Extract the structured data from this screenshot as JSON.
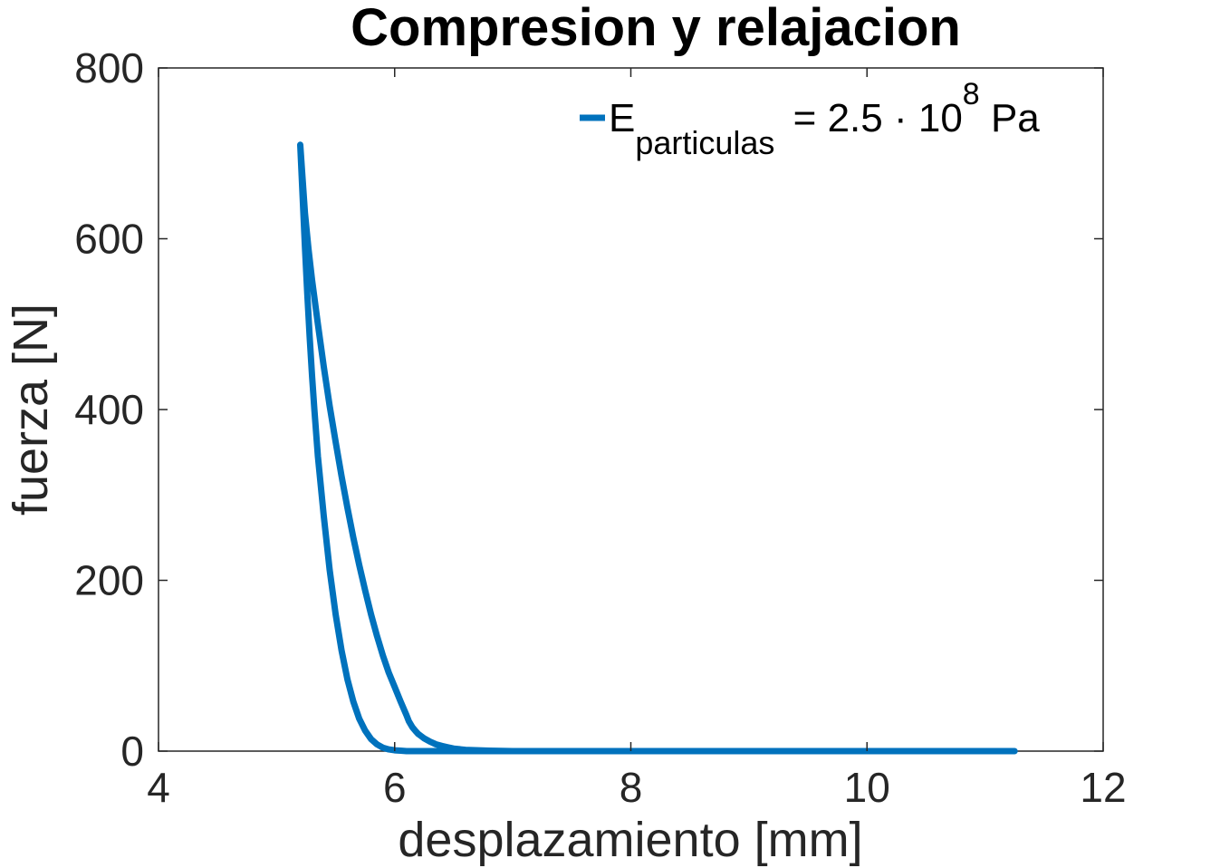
{
  "chart_data": {
    "type": "line",
    "title": "Compresion y relajacion",
    "xlabel": "desplazamiento [mm]",
    "ylabel": "fuerza [N]",
    "xlim": [
      4,
      12
    ],
    "ylim": [
      0,
      800
    ],
    "xticks": [
      4,
      6,
      8,
      10,
      12
    ],
    "yticks": [
      0,
      200,
      400,
      600,
      800
    ],
    "xtick_labels": [
      "4",
      "6",
      "8",
      "10",
      "12"
    ],
    "ytick_labels": [
      "0",
      "200",
      "400",
      "600",
      "800"
    ],
    "grid": false,
    "legend_position": "top-right",
    "legend": {
      "base": "E",
      "subscript": "particulas",
      "middle": " = 2.5 · 10",
      "superscript": "8",
      "unit": " Pa"
    },
    "series": [
      {
        "color": "#0072BD",
        "x": [
          11.25,
          10.5,
          10.0,
          9.5,
          9.0,
          8.5,
          8.0,
          7.5,
          7.0,
          6.8,
          6.6,
          6.5,
          6.45,
          6.4,
          6.35,
          6.3,
          6.25,
          6.22,
          6.2,
          6.18,
          6.15,
          6.12,
          6.1,
          6.05,
          6.0,
          5.95,
          5.9,
          5.85,
          5.8,
          5.75,
          5.7,
          5.65,
          5.6,
          5.55,
          5.5,
          5.45,
          5.4,
          5.35,
          5.3,
          5.27,
          5.24,
          5.22,
          5.2,
          5.22,
          5.24,
          5.26,
          5.28,
          5.3,
          5.32,
          5.35,
          5.4,
          5.45,
          5.5,
          5.55,
          5.6,
          5.65,
          5.7,
          5.75,
          5.8,
          5.85,
          5.9,
          5.95,
          6.0,
          6.05,
          6.1,
          6.15,
          6.2,
          6.3,
          6.4,
          6.5,
          6.6,
          6.7,
          6.8,
          7.0,
          7.5,
          8.0,
          8.5,
          9.0,
          9.5,
          9.9,
          10.0
        ],
        "y": [
          0,
          0,
          0,
          0,
          0,
          0,
          0,
          0,
          0,
          0.5,
          1.5,
          3,
          4.5,
          6,
          8,
          11,
          15,
          18,
          20,
          23,
          28,
          35,
          42,
          58,
          75,
          92,
          112,
          135,
          160,
          188,
          218,
          250,
          285,
          322,
          362,
          404,
          450,
          500,
          552,
          588,
          630,
          670,
          710,
          650,
          590,
          535,
          485,
          440,
          400,
          345,
          275,
          212,
          160,
          118,
          84,
          58,
          38,
          24,
          14,
          8,
          4,
          2,
          1,
          0.5,
          0,
          0,
          0,
          0,
          0,
          0,
          0,
          0,
          0,
          0,
          0,
          0,
          0,
          0,
          0,
          0,
          0
        ]
      }
    ]
  }
}
